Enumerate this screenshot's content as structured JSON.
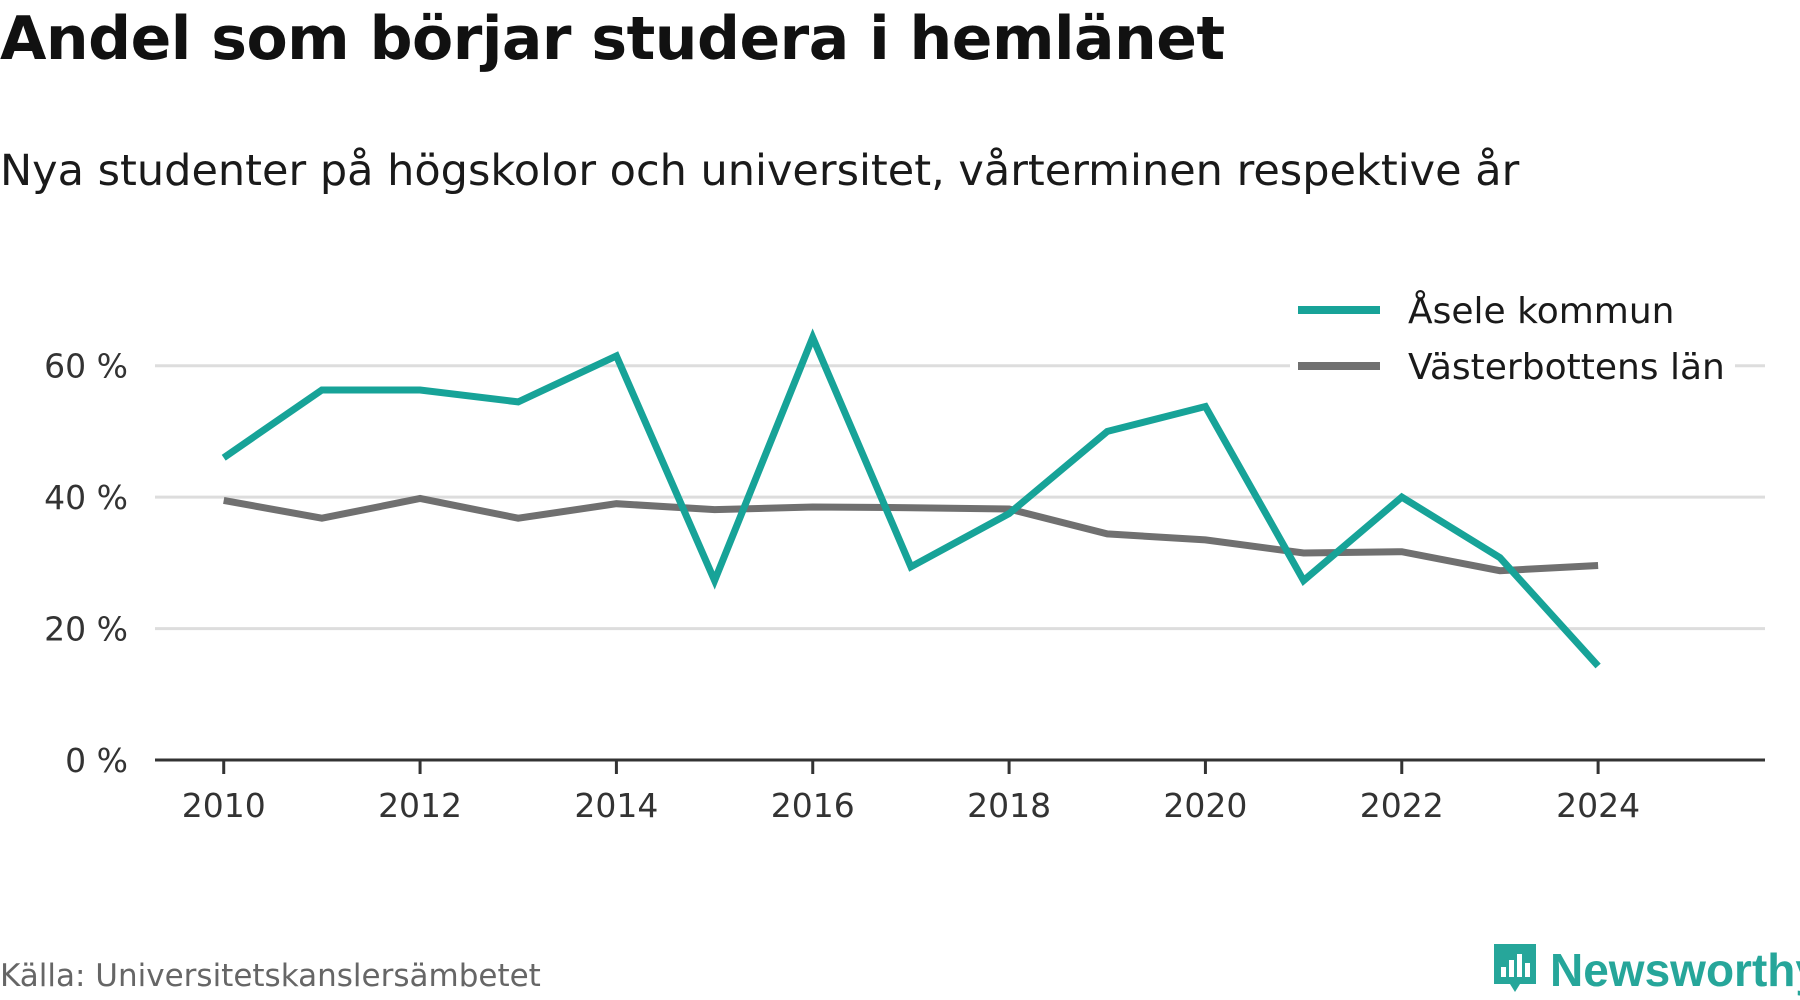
{
  "header": {
    "title": "Andel som börjar studera i hemlänet",
    "subtitle": "Nya studenter på högskolor och universitet, vårterminen respektive år"
  },
  "footer": {
    "source": "Källa: Universitetskanslersämbetet",
    "brand": "Newsworthy",
    "brand_icon": "newsworthy-logo-icon"
  },
  "colors": {
    "series_1": "#17a398",
    "series_2": "#707070",
    "grid": "#dddddd",
    "axis": "#333333",
    "brand": "#26a69a"
  },
  "chart_data": {
    "type": "line",
    "title": "Andel som börjar studera i hemlänet",
    "subtitle": "Nya studenter på högskolor och universitet, vårterminen respektive år",
    "x": [
      2010,
      2011,
      2012,
      2013,
      2014,
      2015,
      2016,
      2017,
      2018,
      2019,
      2020,
      2021,
      2022,
      2023,
      2024
    ],
    "x_ticks": [
      "2010",
      "2012",
      "2014",
      "2016",
      "2018",
      "2020",
      "2022",
      "2024"
    ],
    "xlim": [
      2009.3,
      2025.7
    ],
    "y_ticks": [
      "0 %",
      "20 %",
      "40 %",
      "60 %"
    ],
    "y_tick_values": [
      0,
      20,
      40,
      60
    ],
    "ylim": [
      0,
      70
    ],
    "grid": true,
    "legend_position": "top-right",
    "series": [
      {
        "name": "Åsele kommun",
        "values": [
          46,
          56.3,
          56.3,
          54.5,
          61.5,
          27.3,
          64.3,
          29.4,
          37.5,
          50,
          53.8,
          27.3,
          40,
          30.8,
          14.3
        ]
      },
      {
        "name": "Västerbottens län",
        "values": [
          39.5,
          36.8,
          39.8,
          36.8,
          39,
          38.1,
          38.5,
          38.4,
          38.2,
          34.4,
          33.5,
          31.5,
          31.7,
          28.8,
          29.6
        ]
      }
    ]
  }
}
